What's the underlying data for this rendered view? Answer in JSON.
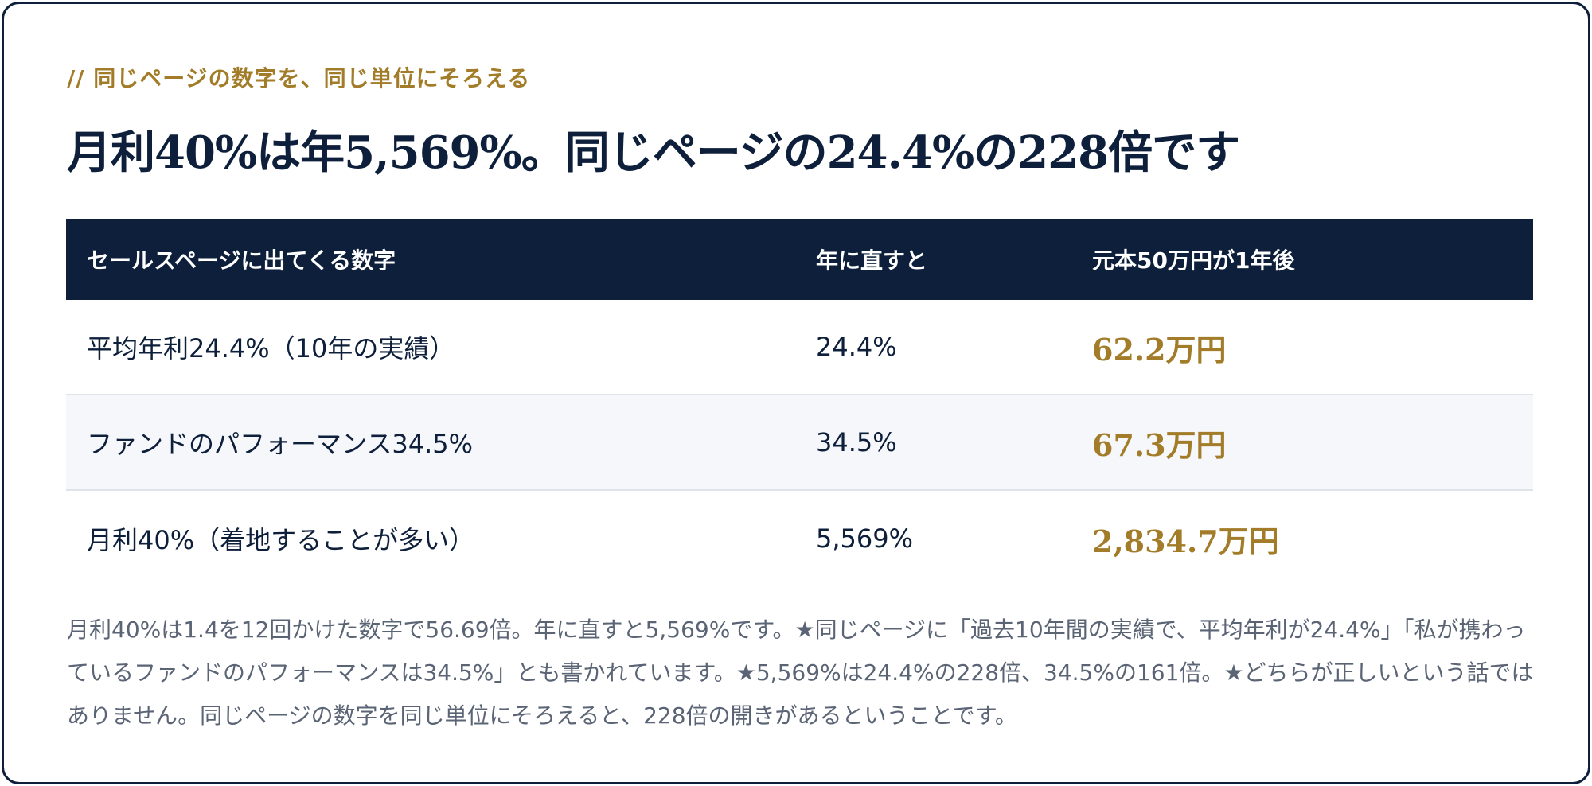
{
  "eyebrow": "// 同じページの数字を、同じ単位にそろえる",
  "headline": "月利40%は年5,569%。同じページの24.4%の228倍です",
  "table": {
    "headers": [
      "セールスページに出てくる数字",
      "年に直すと",
      "元本50万円が1年後"
    ],
    "rows": [
      {
        "figure": "平均年利24.4%（10年の実績）",
        "annual": "24.4%",
        "after_one_year": "62.2万円"
      },
      {
        "figure": "ファンドのパフォーマンス34.5%",
        "annual": "34.5%",
        "after_one_year": "67.3万円"
      },
      {
        "figure": "月利40%（着地することが多い）",
        "annual": "5,569%",
        "after_one_year": "2,834.7万円"
      }
    ]
  },
  "note": "月利40%は1.4を12回かけた数字で56.69倍。年に直すと5,569%です。★同じページに「過去10年間の実績で、平均年利が24.4%」「私が携わっているファンドのパフォーマンスは34.5%」とも書かれています。★5,569%は24.4%の228倍、34.5%の161倍。★どちらが正しいという話ではありません。同じページの数字を同じ単位にそろえると、228倍の開きがあるということです。",
  "colors": {
    "navy": "#0d1f3a",
    "gold": "#a27c28",
    "muted_text": "#5a6475",
    "alt_row": "#f6f7fb"
  }
}
